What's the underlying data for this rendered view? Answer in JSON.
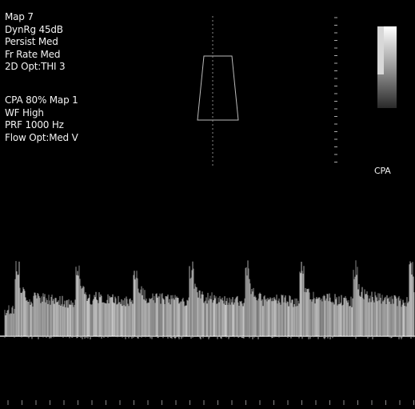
{
  "settings": [
    "Map 7",
    "DynRg 45dB",
    "Persist Med",
    "Fr Rate Med",
    "2D Opt:THI 3"
  ],
  "flow_settings": [
    "CPA 80% Map 1",
    "WF High",
    "PRF 1000 Hz",
    "Flow Opt:Med V"
  ],
  "color_bar_label": "CPA"
}
